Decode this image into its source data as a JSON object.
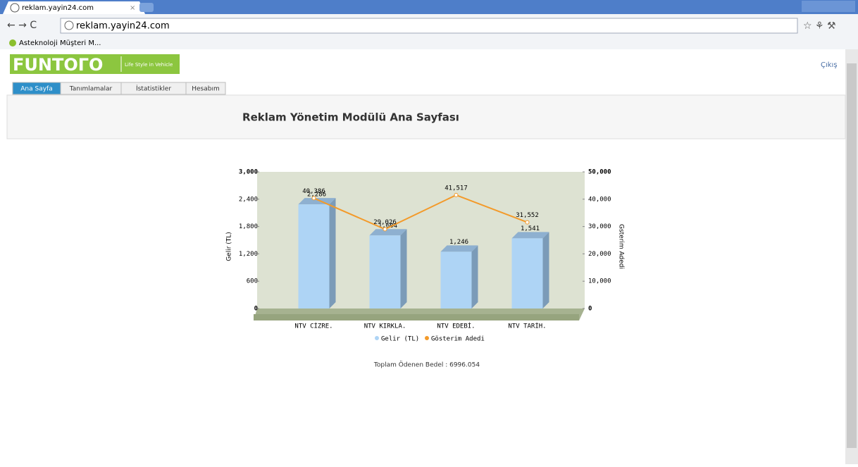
{
  "browser": {
    "tab": "reklam.yayin24.com",
    "url": "reklam.yayin24.com",
    "bookmark": "Asteknoloji Müşteri M..."
  },
  "page": {
    "logo": "FUNTOΓO",
    "slogan": "Life Style in Vehicle",
    "logout": "Çıkış",
    "tabs": [
      "Ana Sayfa",
      "Tanımlamalar",
      "İstatistikler",
      "Hesabım"
    ],
    "heading": "Reklam Yönetim Modülü Ana Sayfası",
    "footer": "Toplam Ödenen Bedel : 6996.054"
  },
  "chart_data": {
    "type": "bar",
    "ylabel": "Gelir (TL)",
    "y2label": "Gsterim Adedi",
    "categories": [
      "NTV CİZRE.",
      "NTV KIRKLA.",
      "NTV EDEBİ.",
      "NTV TARİH."
    ],
    "series": [
      {
        "name": "Gelir (TL)",
        "color": "#aed4f5",
        "values": [
          2286,
          1604,
          1246,
          1541
        ],
        "value_labels": [
          "2,286",
          "1,604",
          "1,246",
          "1,541"
        ]
      },
      {
        "name": "Gösterim Adedi",
        "color": "#f39a2a",
        "axis": "y2",
        "type": "line",
        "values": [
          40386,
          29026,
          41517,
          31552
        ],
        "value_labels": [
          "40,386",
          "29,026",
          "41,517",
          "31,552"
        ]
      }
    ],
    "ylim": [
      0,
      3000
    ],
    "yticks": [
      0,
      600,
      {
        "value": 1200,
        "label": "1,200"
      },
      {
        "value": 1800,
        "label": "1,800"
      },
      {
        "value": 2400,
        "label": "2,400"
      },
      {
        "value": 3000,
        "label": "3,000"
      }
    ],
    "y2lim": [
      0,
      50000
    ],
    "y2ticks": [
      0,
      {
        "value": 10000,
        "label": "10,000"
      },
      {
        "value": 20000,
        "label": "20,000"
      },
      {
        "value": 30000,
        "label": "30,000"
      },
      {
        "value": 40000,
        "label": "40,000"
      },
      {
        "value": 50000,
        "label": "50,000"
      }
    ]
  }
}
